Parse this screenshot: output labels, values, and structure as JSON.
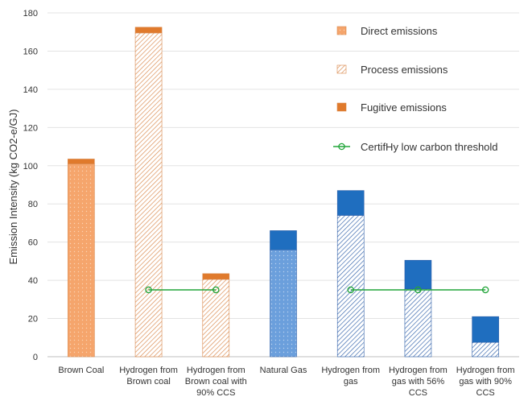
{
  "chart_data": {
    "type": "bar",
    "stacked": true,
    "title": "",
    "xlabel": "",
    "ylabel": "Emission Intensity (kg CO2-e/GJ)",
    "ylim": [
      0,
      180
    ],
    "yticks": [
      0,
      20,
      40,
      60,
      80,
      100,
      120,
      140,
      160,
      180
    ],
    "grid": true,
    "legend_position": "top-right",
    "categories": [
      [
        "Brown Coal"
      ],
      [
        "Hydrogen from",
        "Brown coal"
      ],
      [
        "Hydrogen from",
        "Brown coal with",
        "90% CCS"
      ],
      [
        "Natural Gas"
      ],
      [
        "Hydrogen from",
        "gas"
      ],
      [
        "Hydrogen from",
        "gas with 56%",
        "CCS"
      ],
      [
        "Hydrogen from",
        "gas with 90%",
        "CCS"
      ]
    ],
    "colors": {
      "coal_fill": "#f5a56c",
      "coal_fugitive": "#e07a2c",
      "coal_hatch": "#d9874a",
      "gas_fill": "#6b9fdc",
      "gas_fugitive": "#1f6ebf",
      "gas_hatch": "#2e5fa8",
      "threshold": "#22a53a",
      "grid": "#e3e3e3"
    },
    "series": [
      {
        "name": "Direct emissions",
        "style": "direct",
        "values": [
          101,
          0,
          0,
          56,
          0,
          0,
          0
        ]
      },
      {
        "name": "Process emissions",
        "style": "process",
        "values": [
          0,
          169.5,
          40.5,
          0,
          74,
          35.5,
          7.5
        ]
      },
      {
        "name": "Fugitive emissions",
        "style": "fugitive",
        "values": [
          2.5,
          3,
          3,
          10,
          13,
          15,
          13.5
        ]
      }
    ],
    "category_colors": [
      "coal",
      "coal",
      "coal",
      "gas",
      "gas",
      "gas",
      "gas"
    ],
    "threshold": {
      "name": "CertifHy low carbon threshold",
      "segments": [
        {
          "from": 1,
          "to": 2,
          "value": 35
        },
        {
          "from": 4,
          "to": 6,
          "value": 35
        }
      ]
    }
  }
}
